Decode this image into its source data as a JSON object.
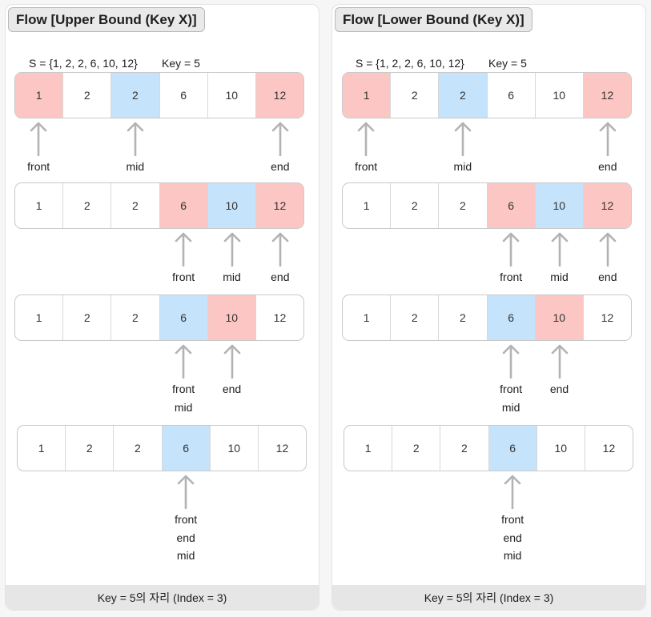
{
  "panels": [
    {
      "title": "Flow [Upper Bound (Key X)]",
      "set_label": "S = {1, 2, 2, 6, 10, 12}",
      "key_label": "Key = 5",
      "steps": [
        {
          "cells": [
            {
              "v": "1",
              "c": "red"
            },
            {
              "v": "2",
              "c": ""
            },
            {
              "v": "2",
              "c": "blue"
            },
            {
              "v": "6",
              "c": ""
            },
            {
              "v": "10",
              "c": ""
            },
            {
              "v": "12",
              "c": "red"
            }
          ],
          "pointers": [
            {
              "index": 0,
              "labels": [
                "front"
              ]
            },
            {
              "index": 2,
              "labels": [
                "mid"
              ]
            },
            {
              "index": 5,
              "labels": [
                "end"
              ]
            }
          ]
        },
        {
          "cells": [
            {
              "v": "1",
              "c": ""
            },
            {
              "v": "2",
              "c": ""
            },
            {
              "v": "2",
              "c": ""
            },
            {
              "v": "6",
              "c": "red"
            },
            {
              "v": "10",
              "c": "blue"
            },
            {
              "v": "12",
              "c": "red"
            }
          ],
          "pointers": [
            {
              "index": 3,
              "labels": [
                "front"
              ]
            },
            {
              "index": 4,
              "labels": [
                "mid"
              ]
            },
            {
              "index": 5,
              "labels": [
                "end"
              ]
            }
          ]
        },
        {
          "cells": [
            {
              "v": "1",
              "c": ""
            },
            {
              "v": "2",
              "c": ""
            },
            {
              "v": "2",
              "c": ""
            },
            {
              "v": "6",
              "c": "blue"
            },
            {
              "v": "10",
              "c": "red"
            },
            {
              "v": "12",
              "c": ""
            }
          ],
          "pointers": [
            {
              "index": 3,
              "labels": [
                "front",
                "mid"
              ]
            },
            {
              "index": 4,
              "labels": [
                "end"
              ]
            }
          ]
        },
        {
          "cells": [
            {
              "v": "1",
              "c": ""
            },
            {
              "v": "2",
              "c": ""
            },
            {
              "v": "2",
              "c": ""
            },
            {
              "v": "6",
              "c": "blue"
            },
            {
              "v": "10",
              "c": ""
            },
            {
              "v": "12",
              "c": ""
            }
          ],
          "pointers": [
            {
              "index": 3,
              "labels": [
                "front",
                "end",
                "mid"
              ]
            }
          ]
        }
      ],
      "footer": "Key = 5의 자리 (Index = 3)"
    },
    {
      "title": "Flow [Lower Bound (Key X)]",
      "set_label": "S = {1, 2, 2, 6, 10, 12}",
      "key_label": "Key = 5",
      "steps": [
        {
          "cells": [
            {
              "v": "1",
              "c": "red"
            },
            {
              "v": "2",
              "c": ""
            },
            {
              "v": "2",
              "c": "blue"
            },
            {
              "v": "6",
              "c": ""
            },
            {
              "v": "10",
              "c": ""
            },
            {
              "v": "12",
              "c": "red"
            }
          ],
          "pointers": [
            {
              "index": 0,
              "labels": [
                "front"
              ]
            },
            {
              "index": 2,
              "labels": [
                "mid"
              ]
            },
            {
              "index": 5,
              "labels": [
                "end"
              ]
            }
          ]
        },
        {
          "cells": [
            {
              "v": "1",
              "c": ""
            },
            {
              "v": "2",
              "c": ""
            },
            {
              "v": "2",
              "c": ""
            },
            {
              "v": "6",
              "c": "red"
            },
            {
              "v": "10",
              "c": "blue"
            },
            {
              "v": "12",
              "c": "red"
            }
          ],
          "pointers": [
            {
              "index": 3,
              "labels": [
                "front"
              ]
            },
            {
              "index": 4,
              "labels": [
                "mid"
              ]
            },
            {
              "index": 5,
              "labels": [
                "end"
              ]
            }
          ]
        },
        {
          "cells": [
            {
              "v": "1",
              "c": ""
            },
            {
              "v": "2",
              "c": ""
            },
            {
              "v": "2",
              "c": ""
            },
            {
              "v": "6",
              "c": "blue"
            },
            {
              "v": "10",
              "c": "red"
            },
            {
              "v": "12",
              "c": ""
            }
          ],
          "pointers": [
            {
              "index": 3,
              "labels": [
                "front",
                "mid"
              ]
            },
            {
              "index": 4,
              "labels": [
                "end"
              ]
            }
          ]
        },
        {
          "cells": [
            {
              "v": "1",
              "c": ""
            },
            {
              "v": "2",
              "c": ""
            },
            {
              "v": "2",
              "c": ""
            },
            {
              "v": "6",
              "c": "blue"
            },
            {
              "v": "10",
              "c": ""
            },
            {
              "v": "12",
              "c": ""
            }
          ],
          "pointers": [
            {
              "index": 3,
              "labels": [
                "front",
                "end",
                "mid"
              ]
            }
          ]
        }
      ],
      "footer": "Key = 5의 자리 (Index = 3)"
    }
  ],
  "colors": {
    "red": "#fcc6c4",
    "blue": "#c5e3fa",
    "arrow": "#b3b3b3"
  }
}
